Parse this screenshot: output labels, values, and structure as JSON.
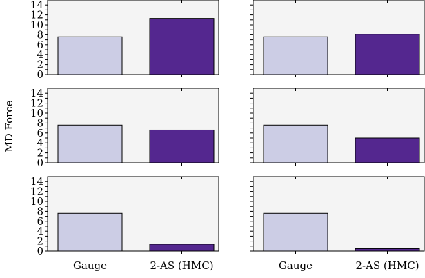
{
  "chart_data": {
    "type": "bar",
    "ylabel": "MD Force",
    "categories": [
      "Gauge",
      "2-AS (HMC)"
    ],
    "ylim": [
      0,
      15
    ],
    "yticks": [
      "0",
      "2",
      "4",
      "6",
      "8",
      "10",
      "12",
      "14"
    ],
    "colors": {
      "Gauge": "#cccde5",
      "2-AS (HMC)": "#54278f",
      "panel_background": "#f4f4f4"
    },
    "panels": [
      {
        "row": 1,
        "col": 1,
        "values": [
          7.6,
          11.3
        ]
      },
      {
        "row": 1,
        "col": 2,
        "values": [
          7.6,
          8.1
        ]
      },
      {
        "row": 2,
        "col": 1,
        "values": [
          7.6,
          6.6
        ]
      },
      {
        "row": 2,
        "col": 2,
        "values": [
          7.6,
          5.0
        ]
      },
      {
        "row": 3,
        "col": 1,
        "values": [
          7.6,
          1.4
        ]
      },
      {
        "row": 3,
        "col": 2,
        "values": [
          7.6,
          0.5
        ]
      }
    ],
    "grid": false,
    "legend": "none"
  }
}
